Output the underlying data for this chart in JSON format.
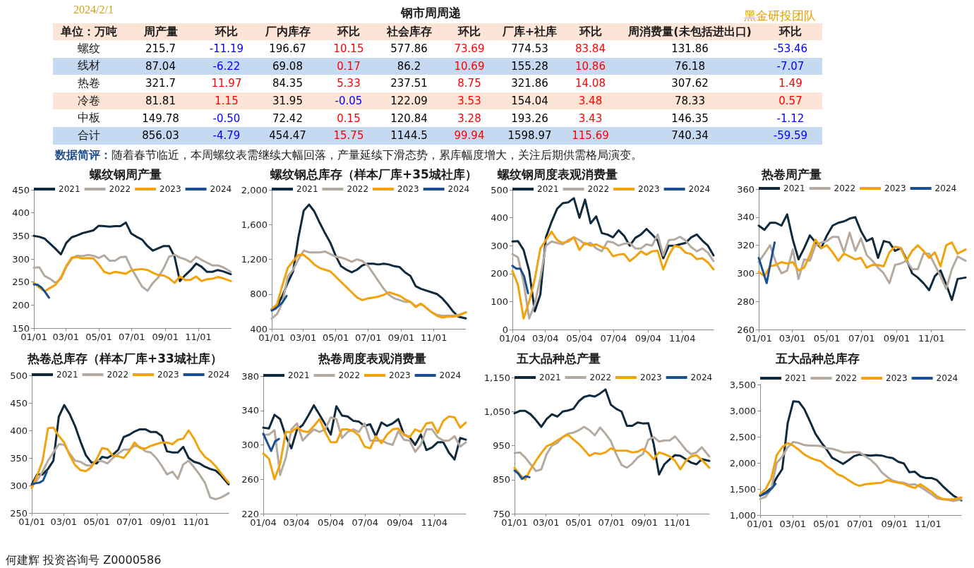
{
  "chart_data": [
    {
      "type": "other",
      "title": "钢市周周递",
      "subtitle": "2024/2/1",
      "ylabel": "单位：万吨",
      "categories": [
        "螺纹",
        "线材",
        "热卷",
        "冷卷",
        "中板",
        "合计"
      ],
      "data_labels": true,
      "series": [
        {
          "name": "周产量",
          "color": "#000000",
          "values": [
            215.7,
            87.04,
            321.7,
            81.81,
            149.78,
            856.03
          ]
        },
        {
          "name": "环比",
          "colors": [
            "#0000ff",
            "#0000ff",
            "#ff0000",
            "#ff0000",
            "#0000ff",
            "#0000ff"
          ],
          "values": [
            -11.19,
            -6.22,
            11.97,
            1.15,
            -0.5,
            -4.79
          ],
          "value_labels": [
            "-11.19",
            "-6.22",
            "11.97",
            "1.15",
            "-0.50",
            "-4.79"
          ]
        },
        {
          "name": "厂内库存",
          "color": "#000000",
          "values": [
            196.67,
            69.08,
            84.35,
            31.95,
            72.42,
            454.47
          ]
        },
        {
          "name": "环比",
          "colors": [
            "#ff0000",
            "#ff0000",
            "#ff0000",
            "#0000ff",
            "#ff0000",
            "#ff0000"
          ],
          "values": [
            10.15,
            0.17,
            5.33,
            -0.05,
            0.15,
            15.75
          ]
        },
        {
          "name": "社会库存",
          "color": "#000000",
          "values": [
            577.86,
            86.2,
            237.51,
            122.09,
            120.84,
            1144.5
          ]
        },
        {
          "name": "环比",
          "colors": [
            "#ff0000",
            "#ff0000",
            "#ff0000",
            "#ff0000",
            "#ff0000",
            "#ff0000"
          ],
          "values": [
            73.69,
            10.69,
            8.75,
            3.53,
            3.28,
            99.94
          ]
        },
        {
          "name": "厂库+社库",
          "color": "#000000",
          "values": [
            774.53,
            155.28,
            321.86,
            154.04,
            193.26,
            1598.97
          ]
        },
        {
          "name": "环比",
          "colors": [
            "#ff0000",
            "#ff0000",
            "#ff0000",
            "#ff0000",
            "#ff0000",
            "#ff0000"
          ],
          "values": [
            83.84,
            10.86,
            14.08,
            3.48,
            3.43,
            115.69
          ]
        },
        {
          "name": "周消费量(未包括进出口)",
          "color": "#000000",
          "values": [
            131.86,
            76.18,
            307.62,
            78.33,
            146.35,
            740.34
          ]
        },
        {
          "name": "环比",
          "colors": [
            "#0000ff",
            "#0000ff",
            "#ff0000",
            "#ff0000",
            "#0000ff",
            "#0000ff"
          ],
          "values": [
            -53.46,
            -7.07,
            1.49,
            0.57,
            -1.12,
            -59.59
          ]
        }
      ],
      "annotations": [
        "数据简评：随着春节临近，本周螺纹表需继续大幅回落，产量延续下滑态势，累库幅度增大，关注后期供需格局演变。",
        "黑金研投团队",
        "何建辉 投资咨询号 Z0000586"
      ]
    },
    {
      "type": "line",
      "title": "螺纹钢周产量",
      "legend": "top",
      "x": [
        "--01-01",
        "--01-11",
        "--01-21",
        "--01-31",
        "--02-10",
        "--02-20",
        "--03-02",
        "--03-12",
        "--03-22",
        "--04-01",
        "--04-11",
        "--04-21",
        "--05-01",
        "--05-11",
        "--05-21",
        "--05-31",
        "--06-10",
        "--06-20",
        "--06-30",
        "--07-10",
        "--07-20",
        "--07-30",
        "--08-09",
        "--08-19",
        "--08-29",
        "--09-08",
        "--09-18",
        "--09-28",
        "--10-08",
        "--10-18",
        "--10-28",
        "--11-07",
        "--11-17",
        "--11-27",
        "--12-07",
        "--12-17",
        "--12-31"
      ],
      "xlim": [
        "--01-01",
        "--12-31"
      ],
      "xticks": [
        {
          "value": "--01-01",
          "label": "01/01"
        },
        {
          "value": "--03-01",
          "label": "03/01"
        },
        {
          "value": "--05-01",
          "label": "05/01"
        },
        {
          "value": "--07-01",
          "label": "07/01"
        },
        {
          "value": "--09-01",
          "label": "09/01"
        },
        {
          "value": "--11-01",
          "label": "11/01"
        }
      ],
      "ylim": [
        150,
        450
      ],
      "yticks": [
        150,
        200,
        250,
        300,
        350,
        400,
        450
      ],
      "series": [
        {
          "name": "2021",
          "color": "#0f2a3d",
          "values": [
            350,
            348,
            344,
            333,
            322,
            310,
            335,
            347,
            351,
            356,
            359,
            362,
            372,
            371,
            370,
            371,
            371,
            379,
            355,
            348,
            342,
            328,
            318,
            323,
            328,
            328,
            305,
            252,
            265,
            276,
            290,
            283,
            272,
            272,
            276,
            273,
            267
          ]
        },
        {
          "name": "2022",
          "color": "#b5aaa0",
          "values": [
            281,
            282,
            263,
            257,
            248,
            257,
            283,
            301,
            307,
            306,
            309,
            307,
            302,
            308,
            296,
            296,
            304,
            305,
            280,
            260,
            240,
            231,
            248,
            260,
            280,
            305,
            309,
            303,
            299,
            293,
            305,
            298,
            292,
            286,
            286,
            282,
            272
          ]
        },
        {
          "name": "2023",
          "color": "#f2a20c",
          "values": [
            248,
            238,
            230,
            237,
            244,
            260,
            285,
            303,
            304,
            301,
            302,
            301,
            288,
            272,
            268,
            272,
            270,
            268,
            275,
            277,
            278,
            276,
            270,
            265,
            264,
            258,
            248,
            262,
            254,
            255,
            262,
            252,
            256,
            257,
            261,
            258,
            252
          ]
        },
        {
          "name": "2024",
          "color": "#1b4f93",
          "x": [
            "--01-01",
            "--01-08",
            "--01-15",
            "--01-22",
            "--01-29"
          ],
          "values": [
            245,
            244,
            238,
            228,
            216
          ]
        }
      ]
    },
    {
      "type": "line",
      "title": "螺纹钢总库存（样本厂库+35城社库）",
      "legend": "top",
      "x": [
        "--01-01",
        "--01-11",
        "--01-21",
        "--01-31",
        "--02-10",
        "--02-20",
        "--03-02",
        "--03-12",
        "--03-22",
        "--04-01",
        "--04-11",
        "--04-21",
        "--05-01",
        "--05-11",
        "--05-21",
        "--05-31",
        "--06-10",
        "--06-20",
        "--06-30",
        "--07-10",
        "--07-20",
        "--07-30",
        "--08-09",
        "--08-19",
        "--08-29",
        "--09-08",
        "--09-18",
        "--09-28",
        "--10-08",
        "--10-18",
        "--10-28",
        "--11-07",
        "--11-17",
        "--11-27",
        "--12-07",
        "--12-17",
        "--12-31"
      ],
      "xlim": [
        "--01-01",
        "--12-31"
      ],
      "xticks": [
        {
          "value": "--01-01",
          "label": "01/01"
        },
        {
          "value": "--03-01",
          "label": "03/01"
        },
        {
          "value": "--05-01",
          "label": "05/01"
        },
        {
          "value": "--07-01",
          "label": "07/01"
        },
        {
          "value": "--09-01",
          "label": "09/01"
        },
        {
          "value": "--11-01",
          "label": "11/01"
        }
      ],
      "ylim": [
        400,
        2000
      ],
      "yticks": [
        400,
        800,
        {
          "value": 1200,
          "label": "1,200"
        },
        {
          "value": 1600,
          "label": "1,600"
        },
        {
          "value": 2000,
          "label": "2,000"
        }
      ],
      "series": [
        {
          "name": "2021",
          "color": "#0f2a3d",
          "values": [
            620,
            660,
            780,
            930,
            1060,
            1450,
            1760,
            1830,
            1750,
            1620,
            1500,
            1390,
            1240,
            1120,
            1080,
            1050,
            1080,
            1130,
            1150,
            1150,
            1140,
            1150,
            1140,
            1120,
            1110,
            1050,
            1010,
            890,
            860,
            840,
            820,
            800,
            750,
            680,
            600,
            540,
            520
          ]
        },
        {
          "name": "2022",
          "color": "#b5aaa0",
          "values": [
            520,
            570,
            700,
            1000,
            1080,
            1200,
            1300,
            1280,
            1280,
            1280,
            1290,
            1260,
            1230,
            1220,
            1200,
            1170,
            1200,
            1180,
            1130,
            1040,
            950,
            860,
            790,
            750,
            730,
            710,
            710,
            660,
            690,
            640,
            590,
            560,
            550,
            550,
            550,
            560,
            590
          ]
        },
        {
          "name": "2023",
          "color": "#f2a20c",
          "values": [
            630,
            680,
            900,
            1100,
            1180,
            1250,
            1250,
            1200,
            1140,
            1100,
            1080,
            1060,
            1000,
            940,
            880,
            820,
            760,
            730,
            750,
            760,
            770,
            790,
            820,
            800,
            780,
            740,
            710,
            650,
            690,
            640,
            590,
            550,
            530,
            540,
            540,
            550,
            590
          ]
        },
        {
          "name": "2024",
          "color": "#1b4f93",
          "x": [
            "--01-01",
            "--01-08",
            "--01-15",
            "--01-22",
            "--01-29"
          ],
          "values": [
            610,
            630,
            670,
            710,
            780
          ]
        }
      ]
    },
    {
      "type": "line",
      "title": "螺纹钢周度表观消费量",
      "legend": "top",
      "x": [
        "--01-04",
        "--01-14",
        "--01-24",
        "--02-03",
        "--02-13",
        "--02-23",
        "--03-05",
        "--03-15",
        "--03-25",
        "--04-04",
        "--04-14",
        "--04-24",
        "--05-04",
        "--05-14",
        "--05-24",
        "--06-03",
        "--06-13",
        "--06-23",
        "--07-03",
        "--07-13",
        "--07-23",
        "--08-02",
        "--08-12",
        "--08-22",
        "--09-01",
        "--09-11",
        "--09-21",
        "--10-01",
        "--10-11",
        "--10-21",
        "--10-31",
        "--11-10",
        "--11-20",
        "--11-30",
        "--12-10",
        "--12-20",
        "--12-30"
      ],
      "xlim": [
        "--01-04",
        "--12-30"
      ],
      "xticks": [
        {
          "value": "--01-04",
          "label": "01/04"
        },
        {
          "value": "--03-04",
          "label": "03/04"
        },
        {
          "value": "--05-04",
          "label": "05/04"
        },
        {
          "value": "--07-04",
          "label": "07/04"
        },
        {
          "value": "--09-04",
          "label": "09/04"
        },
        {
          "value": "--11-04",
          "label": "11/04"
        }
      ],
      "ylim": [
        0,
        500
      ],
      "yticks": [
        0,
        100,
        200,
        300,
        400,
        500
      ],
      "series": [
        {
          "name": "2021",
          "color": "#0f2a3d",
          "values": [
            315,
            316,
            285,
            210,
            65,
            125,
            330,
            385,
            432,
            452,
            455,
            470,
            400,
            465,
            380,
            405,
            345,
            340,
            330,
            355,
            335,
            300,
            328,
            340,
            360,
            340,
            318,
            255,
            300,
            300,
            305,
            310,
            330,
            340,
            318,
            300,
            265
          ]
        },
        {
          "name": "2022",
          "color": "#b5aaa0",
          "values": [
            270,
            258,
            170,
            40,
            90,
            185,
            300,
            315,
            310,
            305,
            320,
            330,
            320,
            305,
            310,
            290,
            280,
            315,
            312,
            300,
            307,
            310,
            290,
            290,
            305,
            300,
            340,
            265,
            320,
            322,
            332,
            318,
            295,
            280,
            290,
            275,
            245
          ]
        },
        {
          "name": "2023",
          "color": "#f2a20c",
          "values": [
            210,
            160,
            40,
            100,
            180,
            290,
            320,
            350,
            320,
            310,
            315,
            330,
            285,
            310,
            300,
            305,
            295,
            290,
            262,
            268,
            270,
            245,
            260,
            280,
            268,
            280,
            282,
            215,
            265,
            300,
            295,
            275,
            270,
            252,
            255,
            240,
            215
          ]
        },
        {
          "name": "2024",
          "color": "#1b4f93",
          "x": [
            "--01-04",
            "--01-11",
            "--01-18",
            "--01-25",
            "--02-01"
          ],
          "values": [
            228,
            218,
            218,
            190,
            130
          ]
        }
      ]
    },
    {
      "type": "line",
      "title": "热卷周产量",
      "legend": "top",
      "x": [
        "--01-01",
        "--01-11",
        "--01-21",
        "--01-31",
        "--02-10",
        "--02-20",
        "--03-02",
        "--03-12",
        "--03-22",
        "--04-01",
        "--04-11",
        "--04-21",
        "--05-01",
        "--05-11",
        "--05-21",
        "--05-31",
        "--06-10",
        "--06-20",
        "--06-30",
        "--07-10",
        "--07-20",
        "--07-30",
        "--08-09",
        "--08-19",
        "--08-29",
        "--09-08",
        "--09-18",
        "--09-28",
        "--10-08",
        "--10-18",
        "--10-28",
        "--11-07",
        "--11-17",
        "--11-27",
        "--12-07",
        "--12-17",
        "--12-31"
      ],
      "xlim": [
        "--01-01",
        "--12-31"
      ],
      "xticks": [
        {
          "value": "--01-01",
          "label": "01/01"
        },
        {
          "value": "--03-01",
          "label": "03/01"
        },
        {
          "value": "--05-01",
          "label": "05/01"
        },
        {
          "value": "--07-01",
          "label": "07/01"
        },
        {
          "value": "--09-01",
          "label": "09/01"
        },
        {
          "value": "--11-01",
          "label": "11/01"
        }
      ],
      "ylim": [
        260,
        360
      ],
      "yticks": [
        260,
        280,
        300,
        320,
        340,
        360
      ],
      "series": [
        {
          "name": "2021",
          "color": "#0f2a3d",
          "values": [
            334,
            331,
            336,
            336,
            334,
            342,
            324,
            310,
            318,
            327,
            322,
            318,
            327,
            334,
            336,
            337,
            339,
            340,
            330,
            323,
            325,
            311,
            323,
            322,
            316,
            318,
            310,
            300,
            297,
            293,
            288,
            298,
            302,
            292,
            281,
            296,
            297
          ]
        },
        {
          "name": "2022",
          "color": "#b5aaa0",
          "values": [
            308,
            314,
            320,
            308,
            300,
            302,
            317,
            296,
            310,
            309,
            320,
            322,
            323,
            326,
            326,
            315,
            329,
            316,
            325,
            313,
            309,
            304,
            300,
            293,
            306,
            307,
            309,
            303,
            303,
            314,
            314,
            306,
            298,
            289,
            303,
            312,
            309
          ]
        },
        {
          "name": "2023",
          "color": "#f2a20c",
          "values": [
            301,
            298,
            305,
            306,
            308,
            307,
            308,
            302,
            304,
            313,
            324,
            318,
            320,
            315,
            309,
            314,
            312,
            310,
            311,
            304,
            306,
            306,
            305,
            315,
            319,
            318,
            309,
            316,
            320,
            316,
            311,
            315,
            305,
            320,
            322,
            314,
            317
          ]
        },
        {
          "name": "2024",
          "color": "#1b4f93",
          "x": [
            "--01-01",
            "--01-08",
            "--01-15",
            "--01-22",
            "--01-29"
          ],
          "values": [
            311,
            302,
            293,
            308,
            322
          ]
        }
      ]
    },
    {
      "type": "line",
      "title": "热卷总库存（样本厂库+33城社库）",
      "legend": "top",
      "x": [
        "--01-01",
        "--01-11",
        "--01-21",
        "--01-31",
        "--02-10",
        "--02-20",
        "--03-02",
        "--03-12",
        "--03-22",
        "--04-01",
        "--04-11",
        "--04-21",
        "--05-01",
        "--05-11",
        "--05-21",
        "--05-31",
        "--06-10",
        "--06-20",
        "--06-30",
        "--07-10",
        "--07-20",
        "--07-30",
        "--08-09",
        "--08-19",
        "--08-29",
        "--09-08",
        "--09-18",
        "--09-28",
        "--10-08",
        "--10-18",
        "--10-28",
        "--11-07",
        "--11-17",
        "--11-27",
        "--12-07",
        "--12-17",
        "--12-31"
      ],
      "xlim": [
        "--01-01",
        "--12-31"
      ],
      "xticks": [
        {
          "value": "--01-01",
          "label": "01/01"
        },
        {
          "value": "--03-01",
          "label": "03/01"
        },
        {
          "value": "--05-01",
          "label": "05/01"
        },
        {
          "value": "--07-01",
          "label": "07/01"
        },
        {
          "value": "--09-01",
          "label": "09/01"
        },
        {
          "value": "--11-01",
          "label": "11/01"
        }
      ],
      "ylim": [
        250,
        500
      ],
      "yticks": [
        250,
        300,
        350,
        400,
        450,
        500
      ],
      "series": [
        {
          "name": "2021",
          "color": "#0f2a3d",
          "values": [
            302,
            320,
            320,
            330,
            345,
            425,
            446,
            430,
            408,
            380,
            355,
            342,
            340,
            352,
            350,
            356,
            365,
            388,
            392,
            398,
            402,
            402,
            397,
            397,
            390,
            362,
            360,
            360,
            370,
            350,
            343,
            340,
            334,
            330,
            327,
            318,
            302
          ]
        },
        {
          "name": "2022",
          "color": "#b5aaa0",
          "values": [
            298,
            310,
            325,
            345,
            360,
            375,
            374,
            358,
            345,
            343,
            337,
            336,
            346,
            344,
            340,
            350,
            358,
            365,
            365,
            372,
            370,
            362,
            360,
            350,
            336,
            320,
            325,
            312,
            338,
            345,
            333,
            320,
            305,
            278,
            275,
            278,
            286
          ]
        },
        {
          "name": "2023",
          "color": "#f2a20c",
          "values": [
            295,
            318,
            345,
            404,
            405,
            390,
            378,
            355,
            337,
            328,
            326,
            333,
            348,
            368,
            366,
            354,
            353,
            350,
            362,
            378,
            368,
            367,
            372,
            375,
            378,
            378,
            375,
            383,
            385,
            400,
            385,
            365,
            352,
            345,
            335,
            322,
            305
          ]
        },
        {
          "name": "2024",
          "color": "#1b4f93",
          "x": [
            "--01-01",
            "--01-08",
            "--01-15",
            "--01-22",
            "--01-29"
          ],
          "values": [
            302,
            304,
            305,
            309,
            325
          ]
        }
      ]
    },
    {
      "type": "line",
      "title": "热卷周度表观消费量",
      "legend": "top",
      "x": [
        "--01-04",
        "--01-14",
        "--01-24",
        "--02-03",
        "--02-13",
        "--02-23",
        "--03-05",
        "--03-15",
        "--03-25",
        "--04-04",
        "--04-14",
        "--04-24",
        "--05-04",
        "--05-14",
        "--05-24",
        "--06-03",
        "--06-13",
        "--06-23",
        "--07-03",
        "--07-13",
        "--07-23",
        "--08-02",
        "--08-12",
        "--08-22",
        "--09-01",
        "--09-11",
        "--09-21",
        "--10-01",
        "--10-11",
        "--10-21",
        "--10-31",
        "--11-10",
        "--11-20",
        "--11-30",
        "--12-10",
        "--12-20",
        "--12-30"
      ],
      "xlim": [
        "--01-04",
        "--12-30"
      ],
      "xticks": [
        {
          "value": "--01-04",
          "label": "01/04"
        },
        {
          "value": "--03-04",
          "label": "03/04"
        },
        {
          "value": "--05-04",
          "label": "05/04"
        },
        {
          "value": "--07-04",
          "label": "07/04"
        },
        {
          "value": "--09-04",
          "label": "09/04"
        },
        {
          "value": "--11-04",
          "label": "11/04"
        }
      ],
      "ylim": [
        220,
        380
      ],
      "yticks": [
        220,
        260,
        300,
        340,
        380
      ],
      "series": [
        {
          "name": "2021",
          "color": "#0f2a3d",
          "values": [
            320,
            319,
            335,
            330,
            310,
            296,
            318,
            323,
            334,
            346,
            335,
            324,
            312,
            345,
            334,
            333,
            328,
            327,
            322,
            324,
            310,
            326,
            322,
            325,
            330,
            312,
            309,
            300,
            312,
            294,
            297,
            303,
            303,
            291,
            283,
            308,
            306
          ]
        },
        {
          "name": "2022",
          "color": "#b5aaa0",
          "values": [
            312,
            312,
            317,
            265,
            285,
            318,
            325,
            305,
            312,
            318,
            315,
            318,
            332,
            330,
            308,
            315,
            318,
            315,
            325,
            305,
            305,
            305,
            302,
            300,
            316,
            306,
            305,
            292,
            300,
            318,
            318,
            309,
            305,
            305,
            310,
            298,
            303
          ]
        },
        {
          "name": "2023",
          "color": "#f2a20c",
          "values": [
            290,
            284,
            260,
            278,
            315,
            315,
            320,
            316,
            315,
            322,
            330,
            315,
            303,
            303,
            318,
            318,
            316,
            311,
            298,
            296,
            310,
            302,
            312,
            318,
            319,
            312,
            309,
            318,
            315,
            325,
            326,
            314,
            328,
            333,
            332,
            320,
            326
          ]
        },
        {
          "name": "2024",
          "color": "#1b4f93",
          "x": [
            "--01-04",
            "--01-11",
            "--01-18",
            "--01-25",
            "--02-01"
          ],
          "values": [
            313,
            303,
            293,
            304,
            307
          ]
        }
      ]
    },
    {
      "type": "line",
      "title": "五大品种总产量",
      "legend": "top",
      "x": [
        "--01-01",
        "--01-11",
        "--01-21",
        "--01-31",
        "--02-10",
        "--02-20",
        "--03-02",
        "--03-12",
        "--03-22",
        "--04-01",
        "--04-11",
        "--04-21",
        "--05-01",
        "--05-11",
        "--05-21",
        "--05-31",
        "--06-10",
        "--06-20",
        "--06-30",
        "--07-10",
        "--07-20",
        "--07-30",
        "--08-09",
        "--08-19",
        "--08-29",
        "--09-08",
        "--09-18",
        "--09-28",
        "--10-08",
        "--10-18",
        "--10-28",
        "--11-07",
        "--11-17",
        "--11-27",
        "--12-07",
        "--12-17",
        "--12-31"
      ],
      "xlim": [
        "--01-01",
        "--12-31"
      ],
      "xticks": [
        {
          "value": "--01-01",
          "label": "01/01"
        },
        {
          "value": "--03-01",
          "label": "03/01"
        },
        {
          "value": "--05-01",
          "label": "05/01"
        },
        {
          "value": "--07-01",
          "label": "07/01"
        },
        {
          "value": "--09-01",
          "label": "09/01"
        },
        {
          "value": "--11-01",
          "label": "11/01"
        }
      ],
      "ylim": [
        750,
        1150
      ],
      "yticks": [
        750,
        850,
        950,
        {
          "value": 1050,
          "label": "1,050"
        },
        {
          "value": 1150,
          "label": "1,150"
        }
      ],
      "series": [
        {
          "name": "2021",
          "color": "#0f2a3d",
          "values": [
            1045,
            1052,
            1052,
            1042,
            1025,
            1005,
            1028,
            1042,
            1035,
            1050,
            1053,
            1058,
            1080,
            1093,
            1097,
            1094,
            1103,
            1115,
            1070,
            1058,
            1050,
            1008,
            1008,
            1018,
            1015,
            1016,
            955,
            865,
            895,
            910,
            922,
            920,
            910,
            900,
            895,
            910,
            905
          ]
        },
        {
          "name": "2022",
          "color": "#b5aaa0",
          "values": [
            928,
            930,
            915,
            895,
            875,
            880,
            925,
            950,
            958,
            975,
            985,
            988,
            995,
            1005,
            995,
            980,
            1003,
            985,
            963,
            925,
            893,
            885,
            897,
            915,
            925,
            967,
            975,
            962,
            965,
            965,
            977,
            958,
            938,
            925,
            930,
            945,
            918
          ]
        },
        {
          "name": "2023",
          "color": "#f2a20c",
          "values": [
            885,
            865,
            850,
            880,
            905,
            928,
            948,
            955,
            965,
            975,
            982,
            968,
            955,
            938,
            920,
            928,
            925,
            930,
            942,
            935,
            935,
            935,
            930,
            932,
            940,
            928,
            910,
            930,
            925,
            918,
            905,
            880,
            905,
            918,
            922,
            908,
            885
          ]
        },
        {
          "name": "2024",
          "color": "#1b4f93",
          "x": [
            "--01-01",
            "--01-08",
            "--01-15",
            "--01-22",
            "--01-29"
          ],
          "values": [
            877,
            868,
            852,
            860,
            857
          ]
        }
      ]
    },
    {
      "type": "line",
      "title": "五大品种总库存",
      "legend": "top",
      "x": [
        "--01-01",
        "--01-11",
        "--01-21",
        "--01-31",
        "--02-10",
        "--02-20",
        "--03-02",
        "--03-12",
        "--03-22",
        "--04-01",
        "--04-11",
        "--04-21",
        "--05-01",
        "--05-11",
        "--05-21",
        "--05-31",
        "--06-10",
        "--06-20",
        "--06-30",
        "--07-10",
        "--07-20",
        "--07-30",
        "--08-09",
        "--08-19",
        "--08-29",
        "--09-08",
        "--09-18",
        "--09-28",
        "--10-08",
        "--10-18",
        "--10-28",
        "--11-07",
        "--11-17",
        "--11-27",
        "--12-07",
        "--12-17",
        "--12-31"
      ],
      "xlim": [
        "--01-01",
        "--12-31"
      ],
      "xticks": [
        {
          "value": "--01-01",
          "label": "01/01"
        },
        {
          "value": "--03-01",
          "label": "03/01"
        },
        {
          "value": "--05-01",
          "label": "05/01"
        },
        {
          "value": "--07-01",
          "label": "07/01"
        },
        {
          "value": "--09-01",
          "label": "09/01"
        },
        {
          "value": "--11-01",
          "label": "11/01"
        }
      ],
      "ylim": [
        1000,
        3500
      ],
      "yticks": [
        {
          "value": 1000,
          "label": "1,000"
        },
        {
          "value": 1500,
          "label": "1,500"
        },
        {
          "value": 2000,
          "label": "2,000"
        },
        {
          "value": 2500,
          "label": "2,500"
        },
        {
          "value": 3000,
          "label": "3,000"
        },
        {
          "value": 3500,
          "label": "3,500"
        }
      ],
      "series": [
        {
          "name": "2021",
          "color": "#0f2a3d",
          "values": [
            1380,
            1430,
            1520,
            1720,
            1880,
            2770,
            3180,
            3170,
            3030,
            2800,
            2560,
            2400,
            2260,
            2100,
            2040,
            1980,
            2050,
            2130,
            2160,
            2150,
            2140,
            2150,
            2140,
            2110,
            2090,
            2020,
            1990,
            1820,
            1830,
            1740,
            1710,
            1710,
            1670,
            1560,
            1460,
            1370,
            1280
          ]
        },
        {
          "name": "2022",
          "color": "#b5aaa0",
          "values": [
            1310,
            1350,
            1500,
            2000,
            2120,
            2300,
            2400,
            2380,
            2340,
            2330,
            2330,
            2320,
            2280,
            2270,
            2240,
            2200,
            2200,
            2210,
            2200,
            2130,
            2060,
            1960,
            1820,
            1730,
            1660,
            1630,
            1620,
            1580,
            1590,
            1540,
            1470,
            1400,
            1320,
            1300,
            1290,
            1270,
            1300
          ]
        },
        {
          "name": "2023",
          "color": "#f2a20c",
          "values": [
            1400,
            1500,
            1700,
            2150,
            2300,
            2380,
            2330,
            2250,
            2160,
            2100,
            2060,
            2030,
            1940,
            1870,
            1780,
            1740,
            1670,
            1600,
            1560,
            1590,
            1600,
            1610,
            1620,
            1670,
            1640,
            1620,
            1600,
            1550,
            1520,
            1590,
            1520,
            1450,
            1360,
            1310,
            1300,
            1300,
            1340
          ]
        },
        {
          "name": "2024",
          "color": "#1b4f93",
          "x": [
            "--01-01",
            "--01-08",
            "--01-15",
            "--01-22",
            "--01-29"
          ],
          "values": [
            1370,
            1400,
            1440,
            1510,
            1600
          ]
        }
      ]
    }
  ]
}
